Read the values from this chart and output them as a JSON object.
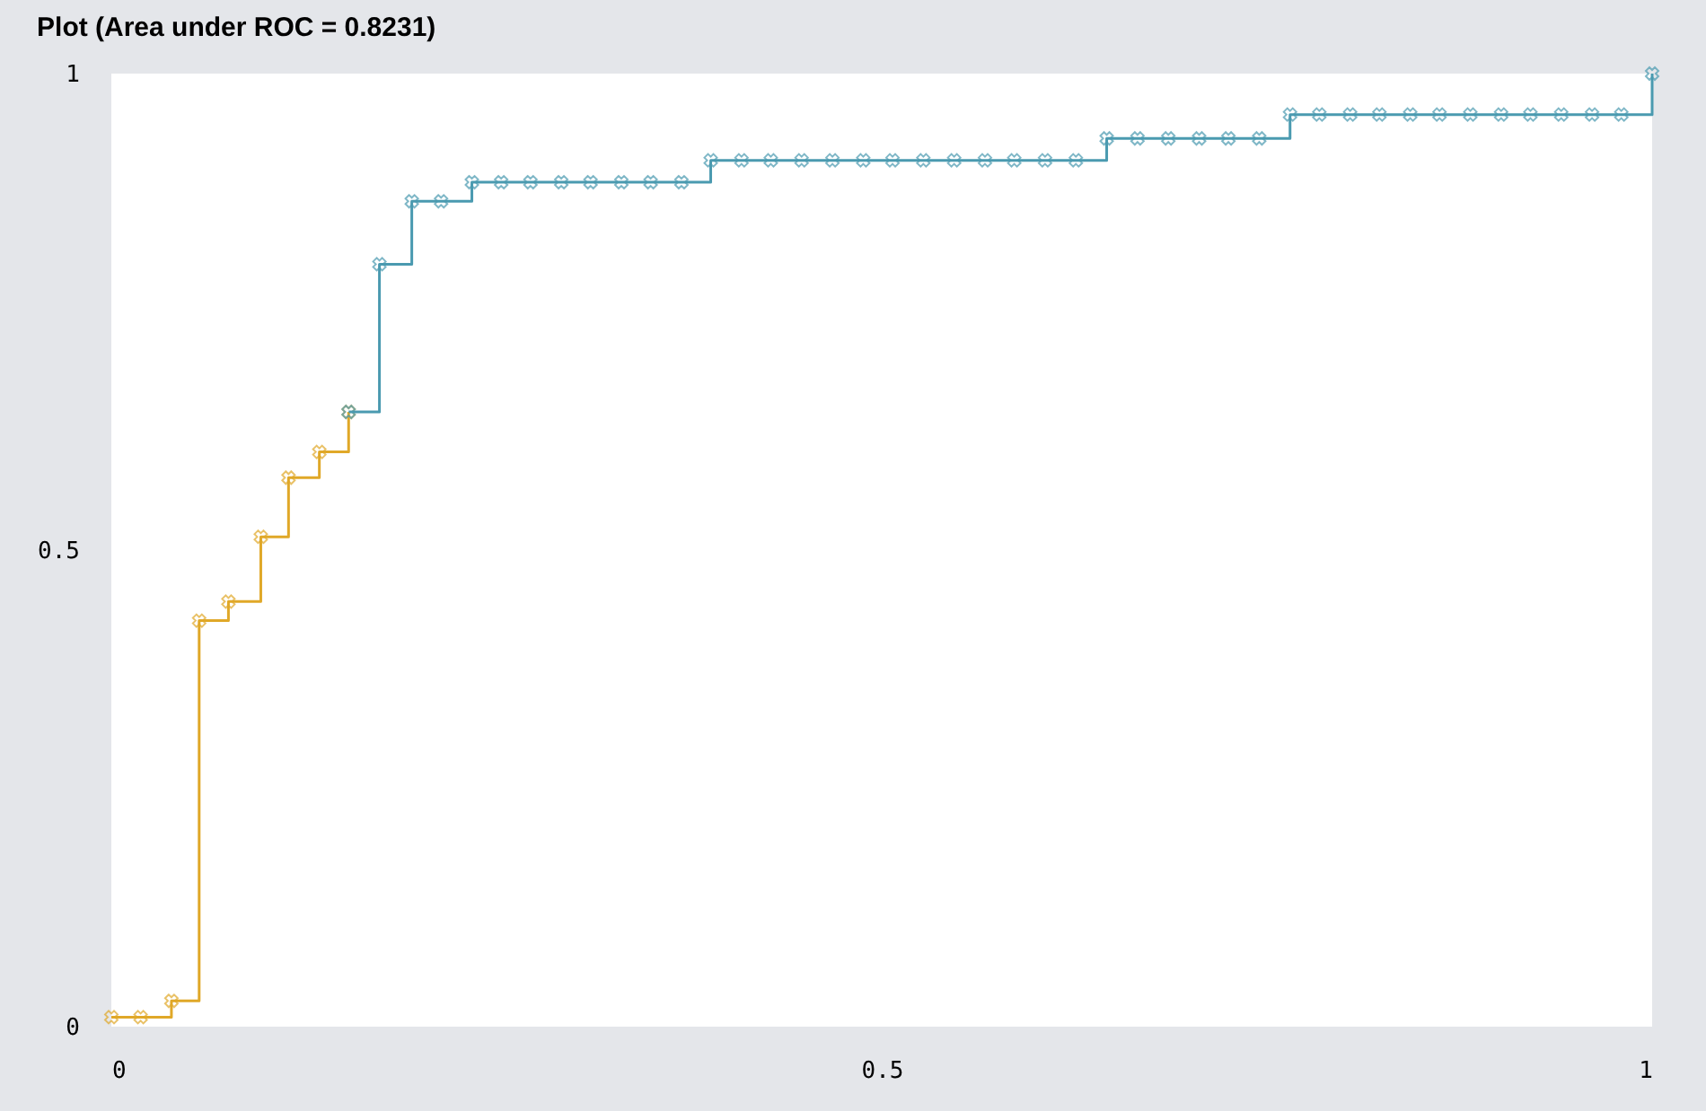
{
  "chart_data": {
    "type": "step",
    "title": "Plot (Area under ROC = 0.8231)",
    "xlim": [
      0,
      1
    ],
    "ylim": [
      0,
      1
    ],
    "xticks": [
      0,
      0.5,
      1
    ],
    "yticks": [
      0,
      0.5,
      1
    ],
    "grid": false,
    "marker": "cross",
    "line_style": "solid",
    "series": [
      {
        "color": "#e0a828",
        "x": [
          0,
          0.019,
          0.039,
          0.057,
          0.076,
          0.097,
          0.115,
          0.135,
          0.154
        ],
        "values": [
          0.01,
          0.01,
          0.027,
          0.426,
          0.446,
          0.514,
          0.576,
          0.603,
          0.645
        ]
      },
      {
        "color": "#4a9ab0",
        "x": [
          0.154,
          0.174,
          0.195,
          0.214,
          0.234,
          0.253,
          0.272,
          0.292,
          0.311,
          0.331,
          0.35,
          0.37,
          0.389,
          0.409,
          0.428,
          0.448,
          0.468,
          0.488,
          0.507,
          0.527,
          0.547,
          0.567,
          0.586,
          0.606,
          0.626,
          0.646,
          0.666,
          0.686,
          0.706,
          0.725,
          0.745,
          0.765,
          0.784,
          0.804,
          0.823,
          0.843,
          0.862,
          0.882,
          0.902,
          0.921,
          0.941,
          0.961,
          0.98,
          1
        ],
        "values": [
          0.645,
          0.8,
          0.866,
          0.866,
          0.886,
          0.886,
          0.886,
          0.886,
          0.886,
          0.886,
          0.886,
          0.886,
          0.909,
          0.909,
          0.909,
          0.909,
          0.909,
          0.909,
          0.909,
          0.909,
          0.909,
          0.909,
          0.909,
          0.909,
          0.909,
          0.932,
          0.932,
          0.932,
          0.932,
          0.932,
          0.932,
          0.957,
          0.957,
          0.957,
          0.957,
          0.957,
          0.957,
          0.957,
          0.957,
          0.957,
          0.957,
          0.957,
          0.957,
          1
        ]
      }
    ]
  }
}
